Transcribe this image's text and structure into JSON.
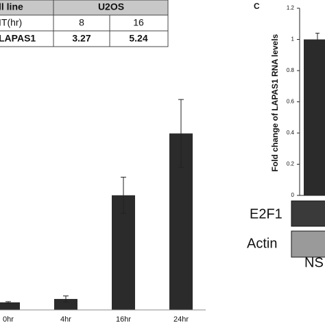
{
  "table": {
    "rows": [
      [
        "ll line",
        "U2OS"
      ],
      [
        "IT(hr)",
        "8",
        "16"
      ],
      [
        "LAPAS1",
        "3.27",
        "5.24"
      ]
    ]
  },
  "chart_data": [
    {
      "type": "bar",
      "categories": [
        "0hr",
        "4hr",
        "16hr",
        "24hr"
      ],
      "values": [
        1,
        1.45,
        15.2,
        23.4
      ],
      "errors": [
        0.1,
        0.4,
        2.4,
        4.5
      ],
      "color": "#2b2b2b"
    },
    {
      "type": "bar",
      "panel": "C",
      "ylabel": "Fold change of LAPAS1 RNA levels",
      "categories": [
        "NS"
      ],
      "values": [
        1
      ],
      "errors": [
        0.04
      ],
      "color": "#2b2b2b",
      "ylim": [
        0,
        1.2
      ],
      "yticks": [
        0,
        0.2,
        0.4,
        0.6,
        0.8,
        1,
        1.2
      ]
    }
  ],
  "blots": [
    "E2F1",
    "Actin"
  ]
}
